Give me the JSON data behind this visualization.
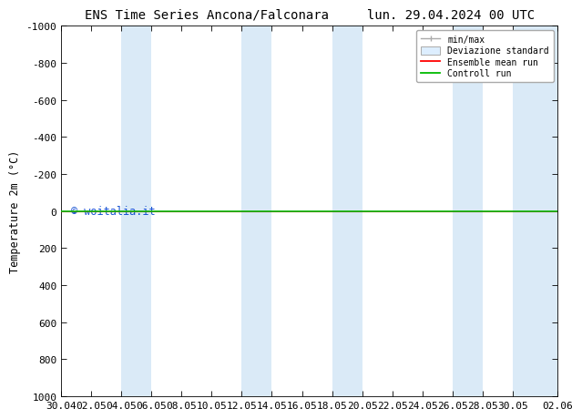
{
  "title_left": "ENS Time Series Ancona/Falconara",
  "title_right": "lun. 29.04.2024 00 UTC",
  "ylabel": "Temperature 2m (°C)",
  "ylim_bottom": 1000,
  "ylim_top": -1000,
  "yticks": [
    -1000,
    -800,
    -600,
    -400,
    -200,
    0,
    200,
    400,
    600,
    800,
    1000
  ],
  "watermark": "© woitalia.it",
  "background_color": "#ffffff",
  "plot_bg_color": "#ffffff",
  "shading_color": "#daeaf7",
  "legend_labels": [
    "min/max",
    "Deviazione standard",
    "Ensemble mean run",
    "Controll run"
  ],
  "legend_colors": [
    "#aaaaaa",
    "#cccccc",
    "#ff0000",
    "#00bb00"
  ],
  "x_start": 0,
  "x_end": 33,
  "x_tick_labels": [
    "30.04",
    "02.05",
    "04.05",
    "06.05",
    "08.05",
    "10.05",
    "12.05",
    "14.05",
    "16.05",
    "18.05",
    "20.05",
    "22.05",
    "24.05",
    "26.05",
    "28.05",
    "30.05",
    "02.06"
  ],
  "x_tick_positions": [
    0,
    2,
    4,
    6,
    8,
    10,
    12,
    14,
    16,
    18,
    20,
    22,
    24,
    26,
    28,
    30,
    33
  ],
  "shading_bands": [
    [
      4,
      6
    ],
    [
      12,
      14
    ],
    [
      18,
      20
    ],
    [
      26,
      28
    ],
    [
      30,
      33
    ]
  ],
  "control_run_y": 0,
  "ensemble_mean_y": 0,
  "title_fontsize": 10,
  "tick_fontsize": 8,
  "ylabel_fontsize": 8.5,
  "watermark_color": "#0044cc"
}
